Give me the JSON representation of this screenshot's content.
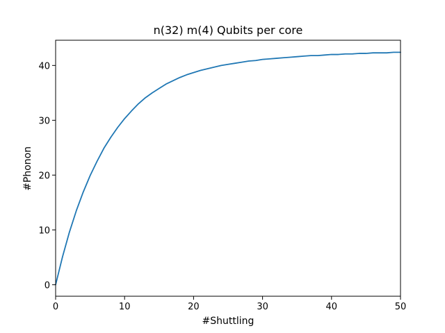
{
  "chart_data": {
    "type": "line",
    "title": "n(32) m(4) Qubits per core",
    "xlabel": "#Shuttling",
    "ylabel": "#Phonon",
    "xlim": [
      0,
      50
    ],
    "ylim": [
      -2.1,
      44.6
    ],
    "x_ticks": [
      0,
      10,
      20,
      30,
      40,
      50
    ],
    "y_ticks": [
      0,
      10,
      20,
      30,
      40
    ],
    "x_tick_labels": [
      "0",
      "10",
      "20",
      "30",
      "40",
      "50"
    ],
    "y_tick_labels": [
      "0",
      "10",
      "20",
      "30",
      "40"
    ],
    "grid": false,
    "legend": "none",
    "series": [
      {
        "color": "#1f77b4",
        "x": [
          0,
          1,
          2,
          3,
          4,
          5,
          6,
          7,
          8,
          9,
          10,
          11,
          12,
          13,
          14,
          15,
          16,
          17,
          18,
          19,
          20,
          21,
          22,
          23,
          24,
          25,
          26,
          27,
          28,
          29,
          30,
          31,
          32,
          33,
          34,
          35,
          36,
          37,
          38,
          39,
          40,
          41,
          42,
          43,
          44,
          45,
          46,
          47,
          48,
          49,
          50
        ],
        "values": [
          0,
          5.1,
          9.6,
          13.5,
          16.9,
          19.9,
          22.5,
          24.9,
          26.9,
          28.7,
          30.3,
          31.7,
          33.0,
          34.1,
          35.0,
          35.8,
          36.6,
          37.2,
          37.8,
          38.3,
          38.7,
          39.1,
          39.4,
          39.7,
          40.0,
          40.2,
          40.4,
          40.6,
          40.8,
          40.9,
          41.1,
          41.2,
          41.3,
          41.4,
          41.5,
          41.6,
          41.7,
          41.8,
          41.8,
          41.9,
          42.0,
          42.0,
          42.1,
          42.1,
          42.2,
          42.2,
          42.3,
          42.3,
          42.3,
          42.4,
          42.4
        ]
      }
    ]
  }
}
